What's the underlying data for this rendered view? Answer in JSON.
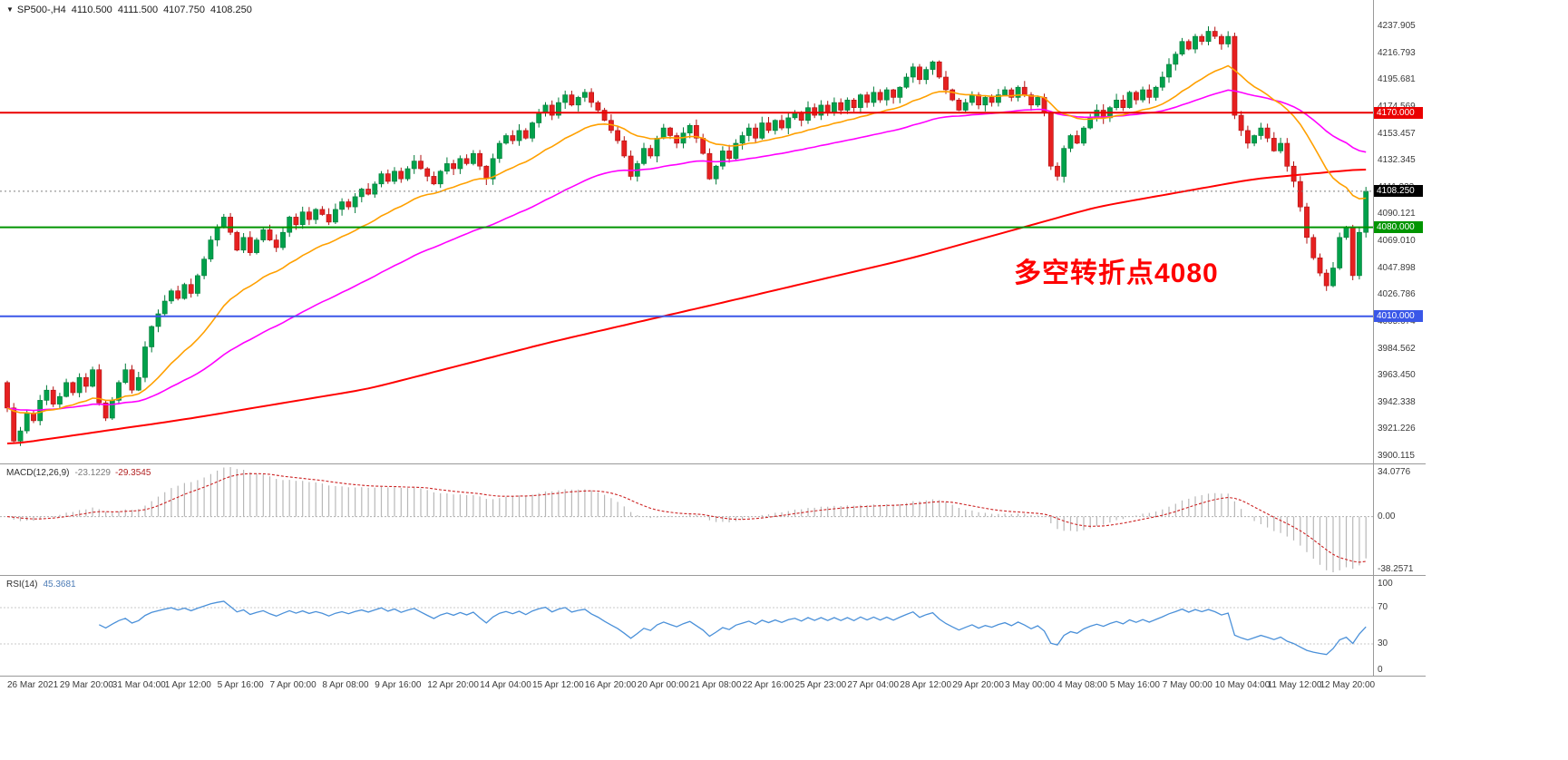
{
  "header": {
    "symbol": "SP500-,H4",
    "open": "4110.500",
    "high": "4111.500",
    "low": "4107.750",
    "close": "4108.250"
  },
  "macd": {
    "label": "MACD(12,26,9)",
    "value_main": "-23.1229",
    "value_signal": "-29.3545",
    "axis_max": 34.0776,
    "axis_min": -38.2571,
    "axis_labels": [
      "34.0776",
      "0.00",
      "-38.2571"
    ]
  },
  "rsi": {
    "label": "RSI(14)",
    "value": "45.3681",
    "axis_labels": [
      "100",
      "70",
      "30",
      "0"
    ],
    "level_lines": [
      70,
      30
    ]
  },
  "colors": {
    "bull_fill": "#00a14b",
    "bull_stroke": "#007a38",
    "bear_fill": "#e62020",
    "bear_stroke": "#b01010",
    "ma_fast": "#ffa000",
    "ma_mid": "#ff00ff",
    "ma_slow": "#ff0000",
    "level_resistance": "#ea0000",
    "level_pivot": "#009500",
    "level_support": "#3a57e8",
    "current_badge": "#000000",
    "macd_hist": "#b8b8b8",
    "macd_signal": "#cc2222",
    "rsi_line": "#4a90d9",
    "grid": "#9a9a9a",
    "axis_text": "#3a3a3a"
  },
  "chart_data": {
    "type": "candlestick",
    "title": "SP500- H4 with MACD(12,26,9) and RSI(14)",
    "timeframe": "H4",
    "ylim": [
      3900.115,
      4237.905
    ],
    "y_tick_labels": [
      "4237.905",
      "4216.793",
      "4195.681",
      "4174.569",
      "4153.457",
      "4132.345",
      "4111.233",
      "4090.121",
      "4069.010",
      "4047.898",
      "4026.786",
      "4005.674",
      "3984.562",
      "3963.450",
      "3942.338",
      "3921.226",
      "3900.115"
    ],
    "x_labels": [
      "26 Mar 2021",
      "29 Mar 20:00",
      "31 Mar 04:00",
      "1 Apr 12:00",
      "5 Apr 16:00",
      "7 Apr 00:00",
      "8 Apr 08:00",
      "9 Apr 16:00",
      "12 Apr 20:00",
      "14 Apr 04:00",
      "15 Apr 12:00",
      "16 Apr 20:00",
      "20 Apr 00:00",
      "21 Apr 08:00",
      "22 Apr 16:00",
      "25 Apr 23:00",
      "27 Apr 04:00",
      "28 Apr 12:00",
      "29 Apr 20:00",
      "3 May 00:00",
      "4 May 08:00",
      "5 May 16:00",
      "7 May 00:00",
      "10 May 04:00",
      "11 May 12:00",
      "12 May 20:00"
    ],
    "candles_per_label": 8,
    "first_open": 3958,
    "closes": [
      3938,
      3912,
      3920,
      3934,
      3928,
      3944,
      3952,
      3941,
      3947,
      3958,
      3950,
      3962,
      3955,
      3968,
      3942,
      3930,
      3944,
      3958,
      3968,
      3952,
      3962,
      3986,
      4002,
      4012,
      4022,
      4030,
      4024,
      4035,
      4028,
      4042,
      4055,
      4070,
      4080,
      4088,
      4076,
      4062,
      4072,
      4060,
      4070,
      4078,
      4070,
      4064,
      4076,
      4088,
      4082,
      4092,
      4086,
      4094,
      4090,
      4084,
      4094,
      4100,
      4096,
      4104,
      4110,
      4106,
      4114,
      4122,
      4116,
      4124,
      4118,
      4126,
      4132,
      4126,
      4120,
      4114,
      4124,
      4130,
      4126,
      4134,
      4130,
      4138,
      4128,
      4118,
      4134,
      4146,
      4152,
      4148,
      4156,
      4150,
      4162,
      4170,
      4176,
      4168,
      4178,
      4184,
      4176,
      4182,
      4186,
      4178,
      4172,
      4164,
      4156,
      4148,
      4136,
      4120,
      4130,
      4142,
      4136,
      4150,
      4158,
      4152,
      4146,
      4154,
      4160,
      4150,
      4138,
      4118,
      4128,
      4140,
      4134,
      4146,
      4152,
      4158,
      4150,
      4162,
      4156,
      4164,
      4158,
      4166,
      4170,
      4164,
      4174,
      4168,
      4176,
      4170,
      4178,
      4172,
      4180,
      4174,
      4184,
      4178,
      4186,
      4180,
      4188,
      4182,
      4190,
      4198,
      4206,
      4196,
      4204,
      4210,
      4198,
      4188,
      4180,
      4172,
      4178,
      4184,
      4176,
      4182,
      4178,
      4184,
      4188,
      4182,
      4190,
      4184,
      4176,
      4182,
      4170,
      4128,
      4120,
      4142,
      4152,
      4146,
      4158,
      4166,
      4172,
      4166,
      4174,
      4180,
      4174,
      4186,
      4180,
      4188,
      4182,
      4190,
      4198,
      4208,
      4216,
      4226,
      4220,
      4230,
      4226,
      4234,
      4230,
      4224,
      4230,
      4168,
      4156,
      4146,
      4152,
      4158,
      4150,
      4140,
      4146,
      4128,
      4116,
      4096,
      4072,
      4056,
      4044,
      4034,
      4048,
      4072,
      4080,
      4042,
      4076,
      4108.25
    ],
    "moving_averages": {
      "fast_period": 21,
      "mid_period": 55,
      "slow_anchors": [
        [
          0,
          3909
        ],
        [
          27,
          3929
        ],
        [
          55,
          3953
        ],
        [
          83,
          3990
        ],
        [
          110,
          4022
        ],
        [
          138,
          4056
        ],
        [
          166,
          4096
        ],
        [
          190,
          4118
        ],
        [
          207,
          4126
        ]
      ]
    },
    "levels": [
      {
        "name": "resistance",
        "price": 4170.0,
        "label": "4170.000"
      },
      {
        "name": "pivot",
        "price": 4080.0,
        "label": "4080.000"
      },
      {
        "name": "support",
        "price": 4010.0,
        "label": "4010.000"
      }
    ],
    "current_price": {
      "price": 4108.25,
      "label": "4108.250"
    },
    "annotation": {
      "text": "多空转折点4080",
      "color": "#fe0000"
    }
  }
}
